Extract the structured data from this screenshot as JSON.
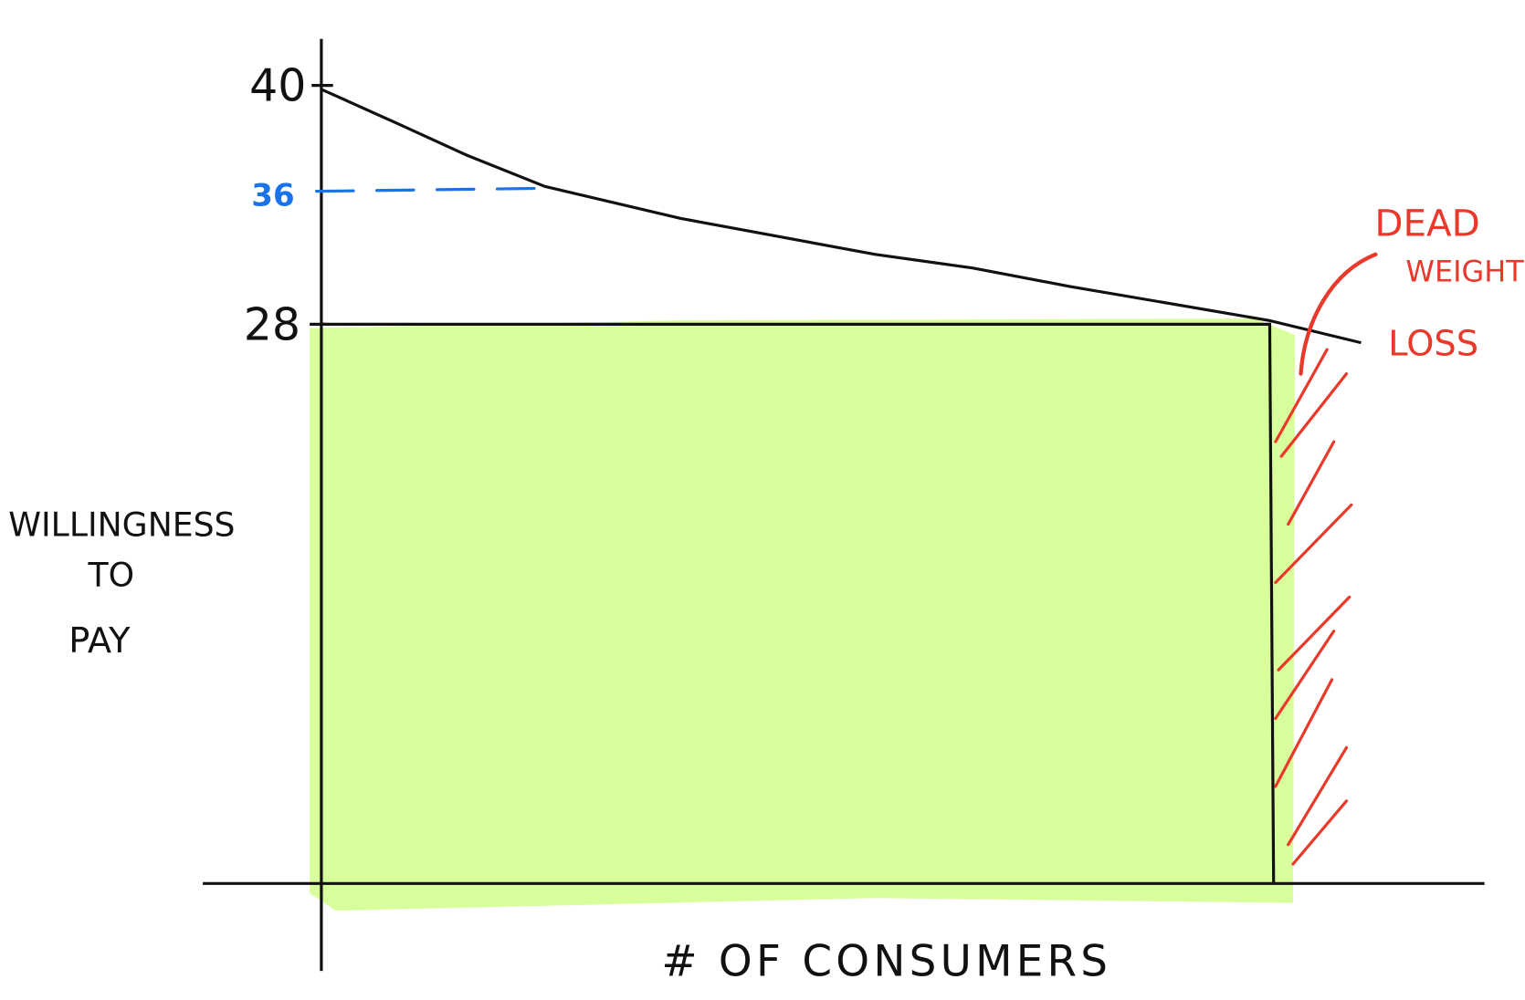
{
  "chart_data": {
    "type": "line",
    "title": "",
    "xlabel": "# OF CONSUMERS",
    "ylabel": [
      "WILLINGNESS",
      "TO",
      "PAY"
    ],
    "y_ticks": [
      "40",
      "28"
    ],
    "highlight_tick": "36",
    "price_level": 28,
    "max_willingness": 40,
    "annotation": [
      "DEAD",
      "WEIGHT",
      "LOSS"
    ],
    "grid": false,
    "colors": {
      "curve": "#111111",
      "revenue_fill": "#d9ff9c",
      "dashed_guide": "#1a73e8",
      "deadweight": "#e8392a"
    }
  }
}
